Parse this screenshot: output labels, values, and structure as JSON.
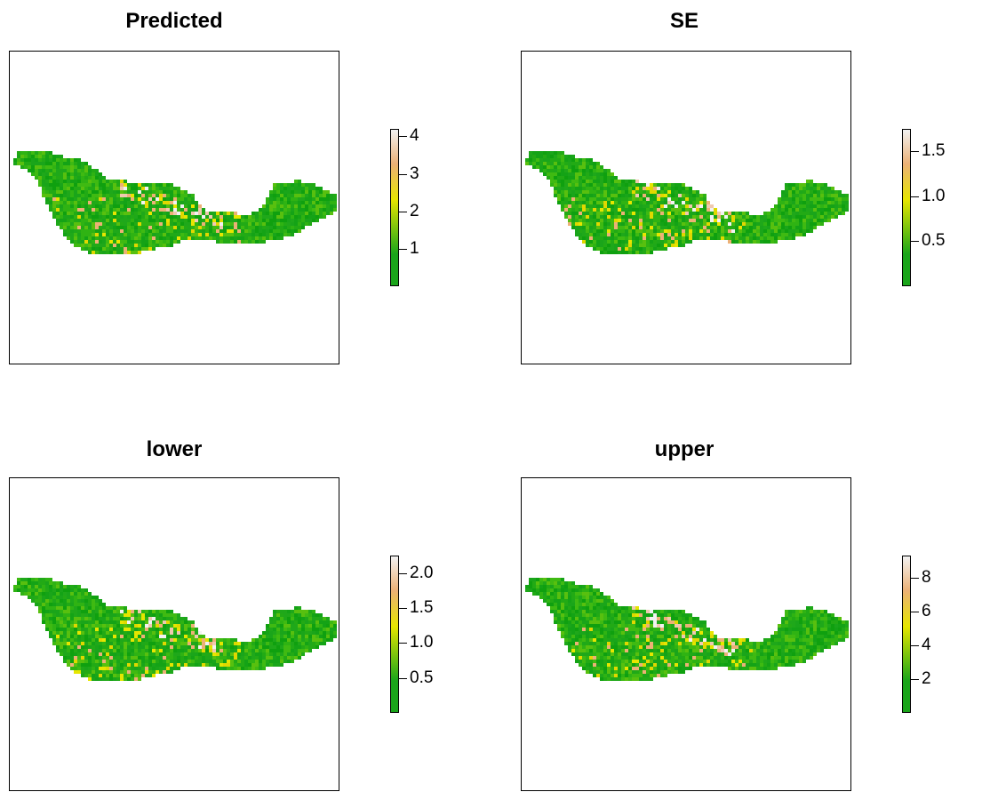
{
  "panels": [
    {
      "title": "Predicted",
      "legend": {
        "min": 0,
        "max": 4.2,
        "ticks": [
          1,
          2,
          3,
          4
        ],
        "tick_labels": [
          "1",
          "2",
          "3",
          "4"
        ]
      }
    },
    {
      "title": "SE",
      "legend": {
        "min": 0,
        "max": 1.75,
        "ticks": [
          0.5,
          1.0,
          1.5
        ],
        "tick_labels": [
          "0.5",
          "1.0",
          "1.5"
        ]
      }
    },
    {
      "title": "lower",
      "legend": {
        "min": 0,
        "max": 2.25,
        "ticks": [
          0.5,
          1.0,
          1.5,
          2.0
        ],
        "tick_labels": [
          "0.5",
          "1.0",
          "1.5",
          "2.0"
        ]
      }
    },
    {
      "title": "upper",
      "legend": {
        "min": 0,
        "max": 9.3,
        "ticks": [
          2,
          4,
          6,
          8
        ],
        "tick_labels": [
          "2",
          "4",
          "6",
          "8"
        ]
      }
    }
  ],
  "chart_data": [
    {
      "type": "heatmap",
      "title": "Predicted",
      "colorbar_range": [
        0,
        4.2
      ],
      "colorbar_ticks": [
        1,
        2,
        3,
        4
      ]
    },
    {
      "type": "heatmap",
      "title": "SE",
      "colorbar_range": [
        0,
        1.75
      ],
      "colorbar_ticks": [
        0.5,
        1.0,
        1.5
      ]
    },
    {
      "type": "heatmap",
      "title": "lower",
      "colorbar_range": [
        0,
        2.25
      ],
      "colorbar_ticks": [
        0.5,
        1.0,
        1.5,
        2.0
      ]
    },
    {
      "type": "heatmap",
      "title": "upper",
      "colorbar_range": [
        0,
        9.3
      ],
      "colorbar_ticks": [
        2,
        4,
        6,
        8
      ]
    }
  ],
  "colors": {
    "low": "#1aa51a",
    "mid": "#e6e600",
    "mid2": "#ecb176",
    "high": "#f2f2f2"
  }
}
